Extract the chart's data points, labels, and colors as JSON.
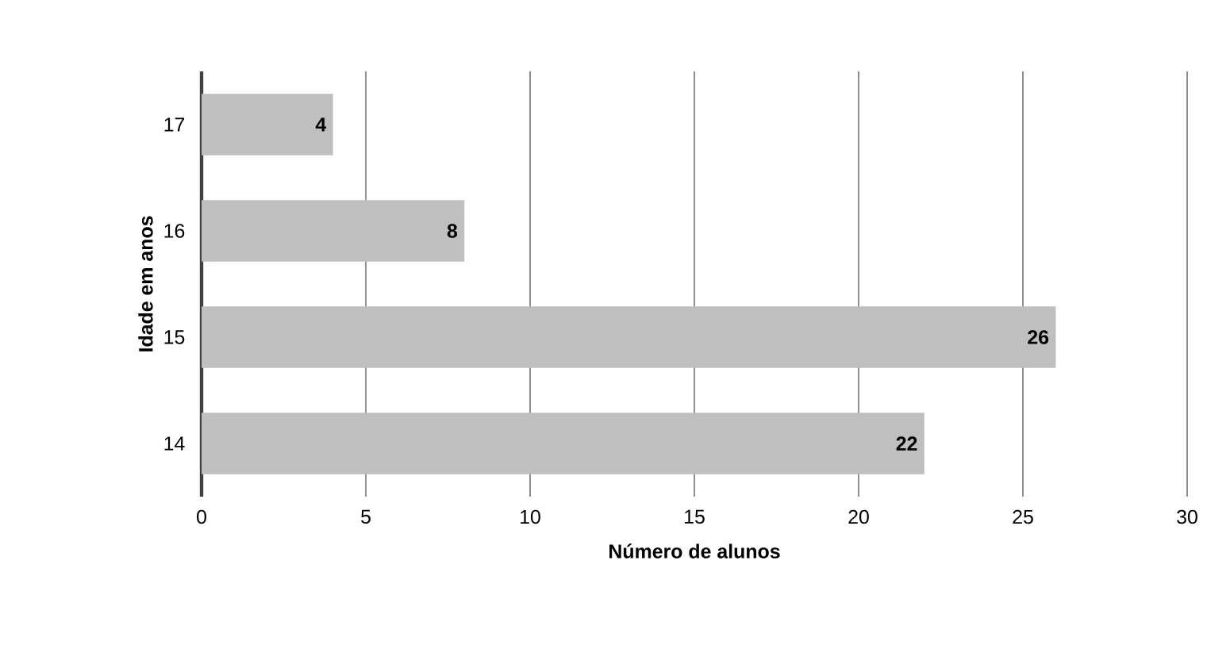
{
  "chart_data": {
    "type": "bar",
    "orientation": "horizontal",
    "xlabel": "Número de alunos",
    "ylabel": "Idade em anos",
    "categories": [
      "17",
      "16",
      "15",
      "14"
    ],
    "values": [
      4,
      8,
      26,
      22
    ],
    "color": "#bfbfbf",
    "xlim": [
      0,
      30
    ],
    "xticks": [
      0,
      5,
      10,
      15,
      20,
      25,
      30
    ],
    "grid": "x",
    "data_labels": true
  }
}
